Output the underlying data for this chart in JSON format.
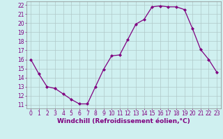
{
  "x": [
    0,
    1,
    2,
    3,
    4,
    5,
    6,
    7,
    8,
    9,
    10,
    11,
    12,
    13,
    14,
    15,
    16,
    17,
    18,
    19,
    20,
    21,
    22,
    23
  ],
  "y": [
    16.0,
    14.4,
    13.0,
    12.8,
    12.2,
    11.6,
    11.1,
    11.1,
    13.0,
    14.9,
    16.4,
    16.5,
    18.2,
    19.9,
    20.4,
    21.8,
    21.9,
    21.8,
    21.8,
    21.5,
    19.4,
    17.1,
    16.0,
    14.6
  ],
  "line_color": "#800080",
  "marker": "D",
  "marker_size": 2.0,
  "bg_color": "#cff0f0",
  "grid_color": "#b0c8c8",
  "xlabel": "Windchill (Refroidissement éolien,°C)",
  "xlabel_color": "#800080",
  "xlabel_fontsize": 6.5,
  "yticks": [
    11,
    12,
    13,
    14,
    15,
    16,
    17,
    18,
    19,
    20,
    21,
    22
  ],
  "xticks": [
    0,
    1,
    2,
    3,
    4,
    5,
    6,
    7,
    8,
    9,
    10,
    11,
    12,
    13,
    14,
    15,
    16,
    17,
    18,
    19,
    20,
    21,
    22,
    23
  ],
  "ylim": [
    10.6,
    22.4
  ],
  "xlim": [
    -0.5,
    23.5
  ],
  "tick_color": "#800080",
  "tick_fontsize": 5.5
}
